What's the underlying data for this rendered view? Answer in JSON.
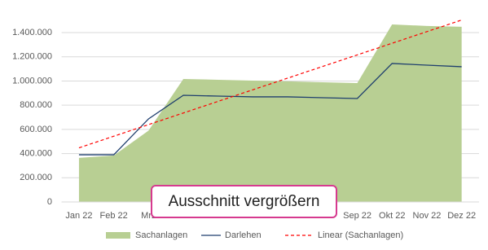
{
  "chart_data": {
    "type": "area",
    "categories": [
      "Jan 22",
      "Feb 22",
      "Mrz",
      null,
      null,
      null,
      null,
      null,
      "Sep 22",
      "Okt 22",
      "Nov 22",
      "Dez 22"
    ],
    "series": [
      {
        "name": "Sachanlagen",
        "type": "area",
        "color": "#b8cf93",
        "values": [
          364000,
          384000,
          590000,
          1017000,
          1010000,
          1003000,
          997000,
          990000,
          983000,
          1468000,
          1455000,
          1448000
        ]
      },
      {
        "name": "Darlehen",
        "type": "line",
        "color": "#1f3f6e",
        "values": [
          390000,
          390000,
          687000,
          882000,
          875000,
          869000,
          869000,
          862000,
          855000,
          1145000,
          1131000,
          1118000
        ]
      }
    ],
    "trendline": {
      "name": "Linear (Sachanlagen)",
      "color": "#ff0000",
      "dashed": true
    },
    "ylim": [
      0,
      1500000
    ],
    "yticks": [
      0,
      {
        "value": 200000,
        "label": "200.000"
      },
      {
        "value": 400000,
        "label": "400.000"
      },
      {
        "value": 600000,
        "label": "600.000"
      },
      {
        "value": 800000,
        "label": "800.000"
      },
      {
        "value": 1000000,
        "label": "1.000.000"
      },
      {
        "value": 1200000,
        "label": "1.200.000"
      },
      {
        "value": 1400000,
        "label": "1.400.000"
      }
    ],
    "grid": true
  },
  "zoom_button": {
    "label": "Ausschnitt vergrößern"
  }
}
